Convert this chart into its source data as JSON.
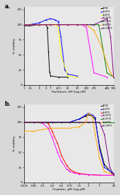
{
  "panel_a": {
    "title": "a.",
    "xlabel": "Paclitaxel, nM (log nM)",
    "ylabel": "% viability",
    "xtick_labels": [
      "1",
      "1.5",
      "3",
      "5",
      "7",
      "12.5",
      "25",
      "50",
      "100",
      "175",
      "460",
      "750"
    ],
    "xtick_values": [
      1,
      1.5,
      3,
      5,
      7,
      12.5,
      25,
      50,
      100,
      175,
      460,
      750
    ],
    "ylim": [
      0,
      130
    ],
    "yticks": [
      0,
      25,
      50,
      75,
      100,
      125
    ],
    "series": [
      {
        "label": "A2780",
        "color": "#000000",
        "x": [
          1,
          1.5,
          3,
          5,
          5.5,
          6.0,
          6.5,
          7,
          12.5,
          25
        ],
        "y": [
          98,
          98,
          100,
          100,
          95,
          55,
          22,
          15,
          13,
          13
        ]
      },
      {
        "label": "A+4PTX",
        "color": "#0000FF",
        "x": [
          1,
          1.5,
          3,
          5,
          7,
          10,
          12.5,
          15,
          20,
          25,
          50
        ],
        "y": [
          100,
          100,
          103,
          108,
          110,
          108,
          105,
          80,
          25,
          18,
          15
        ]
      },
      {
        "label": "A+8PTX",
        "color": "#FFFF00",
        "x": [
          1,
          1.5,
          3,
          5,
          7,
          10,
          12.5,
          15,
          25,
          50
        ],
        "y": [
          100,
          100,
          100,
          100,
          100,
          100,
          95,
          50,
          15,
          13
        ]
      },
      {
        "label": "A+16PTX",
        "color": "#FF00FF",
        "x": [
          1,
          1.5,
          3,
          5,
          7,
          12.5,
          25,
          50,
          75,
          100,
          175,
          460
        ],
        "y": [
          100,
          100,
          100,
          100,
          100,
          100,
          100,
          100,
          100,
          95,
          20,
          13
        ]
      },
      {
        "label": "A+32PTX",
        "color": "#008000",
        "x": [
          1,
          1.5,
          3,
          5,
          7,
          12.5,
          25,
          50,
          100,
          150,
          175,
          250,
          460,
          750
        ],
        "y": [
          100,
          100,
          100,
          100,
          100,
          100,
          100,
          100,
          100,
          100,
          100,
          100,
          20,
          13
        ]
      },
      {
        "label": "A+64PTX",
        "color": "#FFA500",
        "x": [
          1,
          1.5,
          3,
          5,
          7,
          12.5,
          25,
          50,
          100,
          175,
          300,
          460,
          600,
          750
        ],
        "y": [
          100,
          100,
          100,
          100,
          100,
          100,
          100,
          100,
          100,
          90,
          65,
          35,
          20,
          13
        ]
      },
      {
        "label": "A+128PTX",
        "color": "#800080",
        "x": [
          1,
          1.5,
          3,
          5,
          7,
          12.5,
          25,
          50,
          100,
          175,
          460,
          600,
          750
        ],
        "y": [
          100,
          100,
          100,
          100,
          100,
          100,
          100,
          100,
          100,
          100,
          110,
          80,
          13
        ]
      }
    ]
  },
  "panel_b": {
    "title": "b.",
    "xlabel": "Cisplatin, μM (log μM)",
    "ylabel": "% viability",
    "xtick_labels": [
      "0.025",
      "0.05",
      "0.1",
      "0.2",
      "0.4",
      "0.75",
      "1.5",
      "3",
      "7",
      "20"
    ],
    "xtick_values": [
      0.025,
      0.05,
      0.1,
      0.2,
      0.4,
      0.75,
      1.5,
      3,
      7,
      20
    ],
    "ylim": [
      0,
      130
    ],
    "yticks": [
      0,
      25,
      50,
      75,
      100,
      125
    ],
    "series": [
      {
        "label": "A2780",
        "color": "#000000",
        "x": [
          0.025,
          0.05,
          0.1,
          0.2,
          0.4,
          0.75,
          1.5,
          2.5,
          3,
          4,
          5,
          7,
          10,
          20
        ],
        "y": [
          100,
          100,
          100,
          100,
          100,
          100,
          105,
          110,
          112,
          110,
          105,
          60,
          30,
          12
        ]
      },
      {
        "label": "A+4PTX",
        "color": "#0000FF",
        "x": [
          0.025,
          0.05,
          0.1,
          0.2,
          0.4,
          0.75,
          1.5,
          2.5,
          3,
          4,
          5,
          7,
          10,
          20
        ],
        "y": [
          100,
          100,
          100,
          100,
          100,
          100,
          105,
          112,
          115,
          112,
          108,
          55,
          25,
          15
        ]
      },
      {
        "label": "A+8PTX",
        "color": "#FF0000",
        "x": [
          0.025,
          0.05,
          0.1,
          0.15,
          0.2,
          0.3,
          0.4,
          0.6,
          0.75,
          1.0,
          1.5,
          3,
          7,
          20
        ],
        "y": [
          100,
          100,
          100,
          98,
          85,
          65,
          45,
          28,
          22,
          18,
          15,
          13,
          12,
          12
        ]
      },
      {
        "label": "A+16PTX",
        "color": "#FF00FF",
        "x": [
          0.025,
          0.05,
          0.1,
          0.15,
          0.2,
          0.3,
          0.4,
          0.6,
          0.75,
          1.0,
          1.5,
          3,
          7,
          20
        ],
        "y": [
          100,
          100,
          98,
          90,
          75,
          50,
          35,
          22,
          18,
          16,
          14,
          13,
          12,
          12
        ]
      },
      {
        "label": "A+32PTX",
        "color": "#008000",
        "x": [
          0.025,
          0.05,
          0.1,
          0.2,
          0.4,
          0.75,
          1.5,
          3,
          7,
          20
        ],
        "y": [
          100,
          100,
          100,
          100,
          100,
          100,
          100,
          100,
          100,
          100
        ]
      },
      {
        "label": "A+64PTX",
        "color": "#FFA500",
        "x": [
          0.025,
          0.05,
          0.1,
          0.2,
          0.4,
          0.75,
          1.5,
          2.5,
          3,
          4,
          5,
          7,
          10,
          20
        ],
        "y": [
          85,
          85,
          88,
          90,
          90,
          90,
          92,
          100,
          115,
          110,
          80,
          40,
          18,
          13
        ]
      },
      {
        "label": "A+128PTX",
        "color": "#800080",
        "x": [
          0.025,
          0.05,
          0.1,
          0.2,
          0.4,
          0.75,
          1.5,
          3,
          5,
          7,
          10,
          15,
          20
        ],
        "y": [
          100,
          100,
          100,
          100,
          100,
          100,
          100,
          100,
          100,
          100,
          80,
          25,
          13
        ]
      }
    ]
  },
  "background_color": "#e8e8e8",
  "fig_bg": "#d8d8d8"
}
